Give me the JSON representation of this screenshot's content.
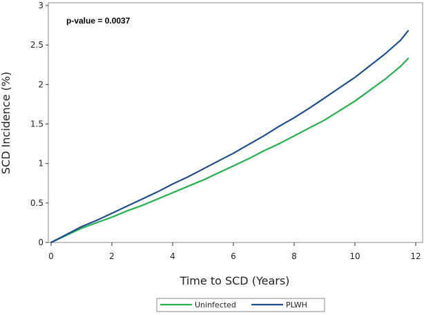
{
  "chart_data": {
    "type": "line",
    "title": "",
    "xlabel": "Time to SCD (Years)",
    "ylabel": "SCD Incidence (%)",
    "xlim": [
      0,
      12
    ],
    "ylim": [
      0,
      3
    ],
    "xticks": [
      0,
      2,
      4,
      6,
      8,
      10,
      12
    ],
    "yticks": [
      0,
      0.5,
      1,
      1.5,
      2,
      2.5,
      3
    ],
    "xtick_labels": [
      "0",
      "2",
      "4",
      "6",
      "8",
      "10",
      "12"
    ],
    "ytick_labels": [
      "0",
      "0.5",
      "1",
      "1.5",
      "2",
      "2.5",
      "3"
    ],
    "grid": false,
    "legend_position": "bottom",
    "annotation": "p-value = 0.0037",
    "series": [
      {
        "name": "Uninfected",
        "color": "#22b14c",
        "x": [
          0,
          0.5,
          1,
          1.5,
          2,
          2.5,
          3,
          3.5,
          4,
          4.5,
          5,
          5.5,
          6,
          6.5,
          7,
          7.5,
          8,
          8.5,
          9,
          9.5,
          10,
          10.5,
          11,
          11.5,
          11.75
        ],
        "y": [
          0,
          0.09,
          0.18,
          0.25,
          0.32,
          0.4,
          0.47,
          0.55,
          0.63,
          0.71,
          0.79,
          0.88,
          0.97,
          1.06,
          1.16,
          1.25,
          1.35,
          1.45,
          1.55,
          1.67,
          1.79,
          1.93,
          2.07,
          2.23,
          2.33
        ]
      },
      {
        "name": "PLWH",
        "color": "#1f4e8c",
        "x": [
          0,
          0.5,
          1,
          1.5,
          2,
          2.5,
          3,
          3.5,
          4,
          4.5,
          5,
          5.5,
          6,
          6.5,
          7,
          7.5,
          8,
          8.5,
          9,
          9.5,
          10,
          10.5,
          11,
          11.5,
          11.75
        ],
        "y": [
          0,
          0.1,
          0.2,
          0.28,
          0.37,
          0.46,
          0.55,
          0.64,
          0.74,
          0.83,
          0.93,
          1.03,
          1.13,
          1.24,
          1.35,
          1.47,
          1.58,
          1.7,
          1.83,
          1.96,
          2.09,
          2.24,
          2.39,
          2.56,
          2.68
        ]
      }
    ]
  }
}
